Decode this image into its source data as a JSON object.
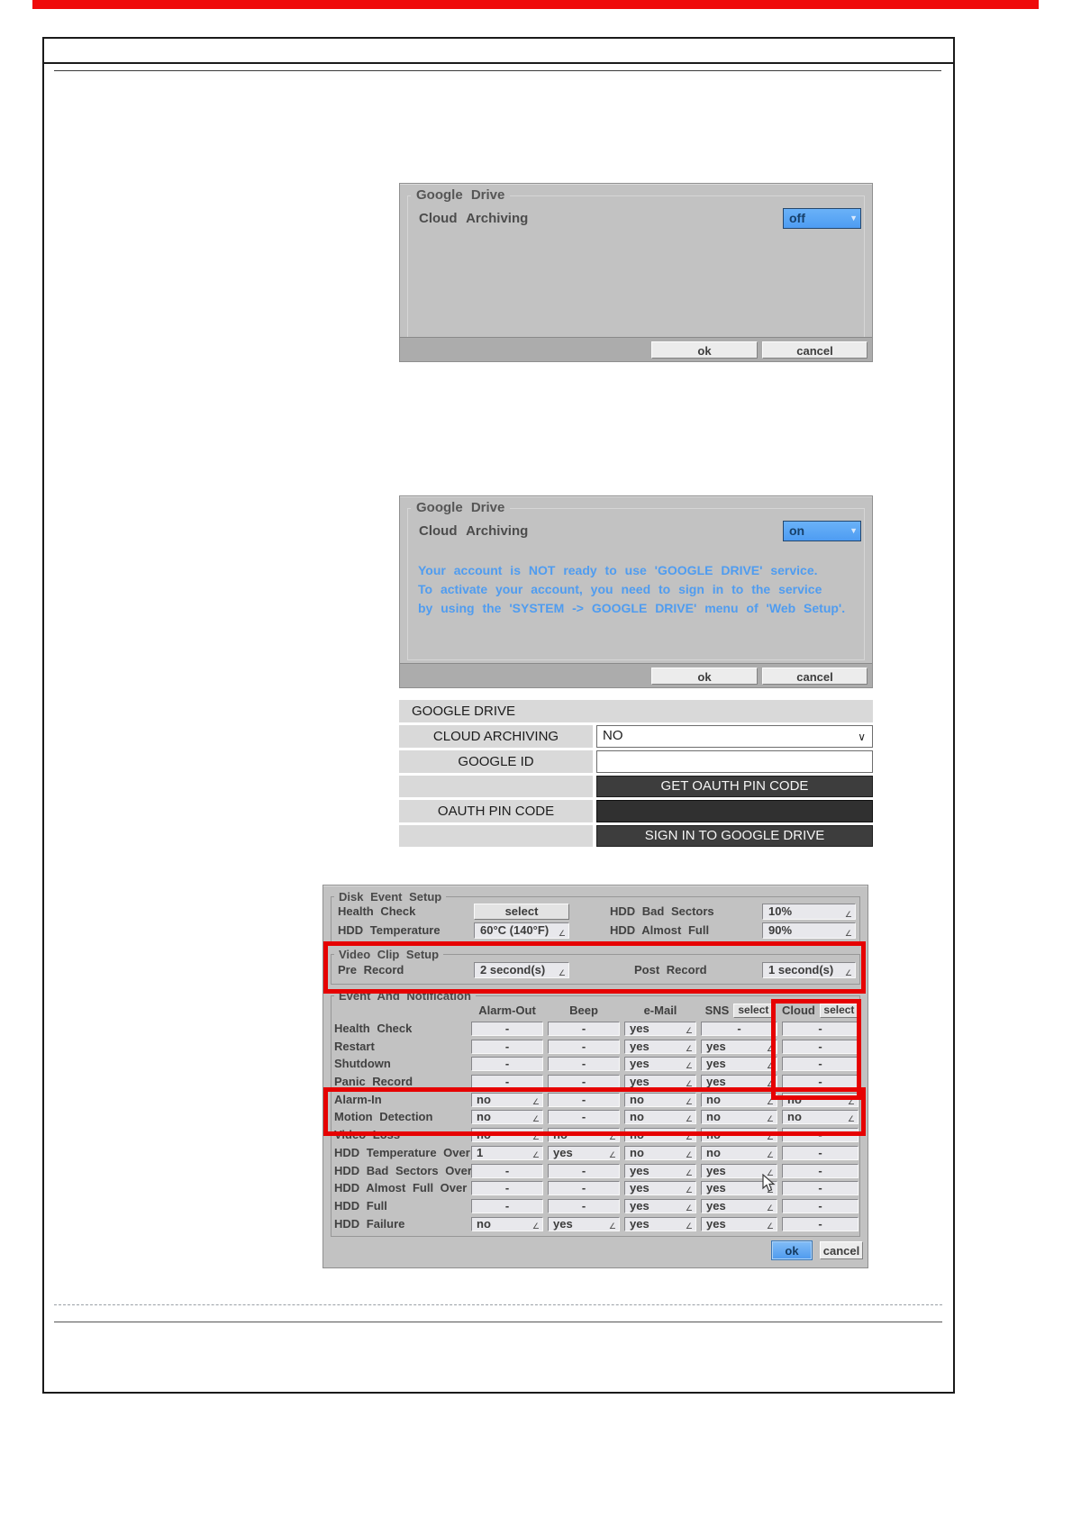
{
  "colors": {
    "top_bar_red": "#ef0b0b",
    "annotation_red": "#e60202",
    "dropdown_blue": "#55a4f5",
    "message_blue": "#4f9cf0",
    "dark_button_gray": "#3d3d3d",
    "ok_button_blue": "#5fa8f0"
  },
  "icons": {
    "dropdown_arrow": "▼",
    "dropdown_glyph": "∠",
    "select_chevron": "∨"
  },
  "dialog_off": {
    "group_title": "Google Drive",
    "field_label": "Cloud Archiving",
    "field_value": "off",
    "ok_label": "ok",
    "cancel_label": "cancel"
  },
  "dialog_on": {
    "group_title": "Google Drive",
    "field_label": "Cloud Archiving",
    "field_value": "on",
    "message_lines": [
      "Your account is NOT ready to use 'GOOGLE DRIVE' service.",
      "To activate your account, you need to sign in to the service",
      "by using the 'SYSTEM -> GOOGLE DRIVE' menu of 'Web Setup'."
    ],
    "ok_label": "ok",
    "cancel_label": "cancel"
  },
  "web_form": {
    "title": "GOOGLE DRIVE",
    "cloud_archiving_label": "CLOUD ARCHIVING",
    "cloud_archiving_value": "NO",
    "google_id_label": "GOOGLE ID",
    "google_id_value": "",
    "get_pin_button_label": "GET OAUTH PIN CODE",
    "oauth_pin_label": "OAUTH PIN CODE",
    "oauth_pin_value": "",
    "sign_in_button_label": "SIGN IN TO GOOGLE DRIVE"
  },
  "disk_panel": {
    "disk_event_setup": {
      "title": "Disk Event Setup",
      "health_check_label": "Health Check",
      "health_check_button": "select",
      "hdd_temperature_label": "HDD Temperature",
      "hdd_temperature_value": "60°C (140°F)",
      "hdd_bad_sectors_label": "HDD Bad Sectors",
      "hdd_bad_sectors_value": "10%",
      "hdd_almost_full_label": "HDD Almost Full",
      "hdd_almost_full_value": "90%"
    },
    "video_clip_setup": {
      "title": "Video Clip Setup",
      "pre_record_label": "Pre Record",
      "pre_record_value": "2 second(s)",
      "post_record_label": "Post Record",
      "post_record_value": "1 second(s)"
    },
    "event_notification": {
      "title": "Event And Notification",
      "columns": [
        "Alarm-Out",
        "Beep",
        "e-Mail",
        "SNS",
        "Cloud"
      ],
      "sns_select_button": "select",
      "cloud_select_button": "select",
      "rows": [
        {
          "label": "Health Check",
          "cells": [
            {
              "v": "-",
              "dd": false
            },
            {
              "v": "-",
              "dd": false
            },
            {
              "v": "yes",
              "dd": true
            },
            {
              "v": "-",
              "dd": false
            },
            {
              "v": "-",
              "dd": false
            }
          ]
        },
        {
          "label": "Restart",
          "cells": [
            {
              "v": "-",
              "dd": false
            },
            {
              "v": "-",
              "dd": false
            },
            {
              "v": "yes",
              "dd": true
            },
            {
              "v": "yes",
              "dd": true
            },
            {
              "v": "-",
              "dd": false
            }
          ]
        },
        {
          "label": "Shutdown",
          "cells": [
            {
              "v": "-",
              "dd": false
            },
            {
              "v": "-",
              "dd": false
            },
            {
              "v": "yes",
              "dd": true
            },
            {
              "v": "yes",
              "dd": true
            },
            {
              "v": "-",
              "dd": false
            }
          ]
        },
        {
          "label": "Panic Record",
          "cells": [
            {
              "v": "-",
              "dd": false
            },
            {
              "v": "-",
              "dd": false
            },
            {
              "v": "yes",
              "dd": true
            },
            {
              "v": "yes",
              "dd": true
            },
            {
              "v": "-",
              "dd": false
            }
          ]
        },
        {
          "label": "Alarm-In",
          "cells": [
            {
              "v": "no",
              "dd": true
            },
            {
              "v": "-",
              "dd": false
            },
            {
              "v": "no",
              "dd": true
            },
            {
              "v": "no",
              "dd": true
            },
            {
              "v": "no",
              "dd": true
            }
          ]
        },
        {
          "label": "Motion Detection",
          "cells": [
            {
              "v": "no",
              "dd": true
            },
            {
              "v": "-",
              "dd": false
            },
            {
              "v": "no",
              "dd": true
            },
            {
              "v": "no",
              "dd": true
            },
            {
              "v": "no",
              "dd": true
            }
          ]
        },
        {
          "label": "Video Loss",
          "cells": [
            {
              "v": "no",
              "dd": true
            },
            {
              "v": "no",
              "dd": true
            },
            {
              "v": "no",
              "dd": true
            },
            {
              "v": "no",
              "dd": true
            },
            {
              "v": "-",
              "dd": false
            }
          ]
        },
        {
          "label": "HDD Temperature Over",
          "cells": [
            {
              "v": "1",
              "dd": true
            },
            {
              "v": "yes",
              "dd": true
            },
            {
              "v": "no",
              "dd": true
            },
            {
              "v": "no",
              "dd": true
            },
            {
              "v": "-",
              "dd": false
            }
          ]
        },
        {
          "label": "HDD Bad Sectors Over",
          "cells": [
            {
              "v": "-",
              "dd": false
            },
            {
              "v": "-",
              "dd": false
            },
            {
              "v": "yes",
              "dd": true
            },
            {
              "v": "yes",
              "dd": true
            },
            {
              "v": "-",
              "dd": false
            }
          ]
        },
        {
          "label": "HDD Almost Full Over",
          "cells": [
            {
              "v": "-",
              "dd": false
            },
            {
              "v": "-",
              "dd": false
            },
            {
              "v": "yes",
              "dd": true
            },
            {
              "v": "yes",
              "dd": true
            },
            {
              "v": "-",
              "dd": false
            }
          ]
        },
        {
          "label": "HDD Full",
          "cells": [
            {
              "v": "-",
              "dd": false
            },
            {
              "v": "-",
              "dd": false
            },
            {
              "v": "yes",
              "dd": true
            },
            {
              "v": "yes",
              "dd": true
            },
            {
              "v": "-",
              "dd": false
            }
          ]
        },
        {
          "label": "HDD Failure",
          "cells": [
            {
              "v": "no",
              "dd": true
            },
            {
              "v": "yes",
              "dd": true
            },
            {
              "v": "yes",
              "dd": true
            },
            {
              "v": "yes",
              "dd": true
            },
            {
              "v": "-",
              "dd": false
            }
          ]
        }
      ]
    },
    "ok_label": "ok",
    "cancel_label": "cancel"
  }
}
